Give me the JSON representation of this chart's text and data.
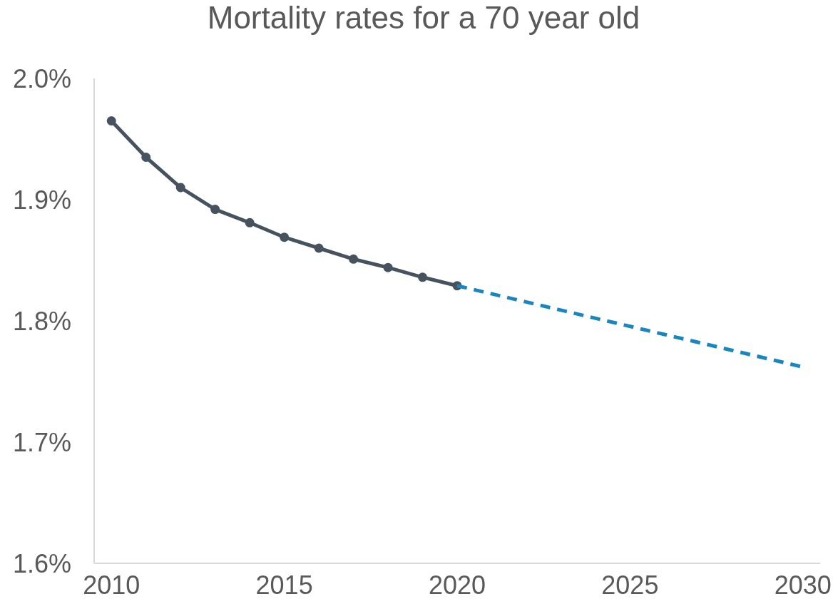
{
  "chart_data": {
    "type": "line",
    "title": "Mortality rates for a 70 year old",
    "xlim": [
      2009.5,
      2030.5
    ],
    "xticks": [
      2010,
      2015,
      2020,
      2025,
      2030
    ],
    "ylim": [
      1.6,
      2.0
    ],
    "yticks": [
      {
        "value": 1.6,
        "label": "1.6%"
      },
      {
        "value": 1.7,
        "label": "1.7%"
      },
      {
        "value": 1.8,
        "label": "1.8%"
      },
      {
        "value": 1.9,
        "label": "1.9%"
      },
      {
        "value": 2.0,
        "label": "2.0%"
      }
    ],
    "series": [
      {
        "color": "#46535e",
        "marker": "circle",
        "line_style": "solid",
        "x": [
          2010,
          2011,
          2012,
          2013,
          2014,
          2015,
          2016,
          2017,
          2018,
          2019,
          2020
        ],
        "values": [
          1.965,
          1.935,
          1.91,
          1.892,
          1.881,
          1.869,
          1.86,
          1.851,
          1.844,
          1.836,
          1.829
        ]
      },
      {
        "color": "#1a86c0",
        "marker": "none",
        "line_style": "dashed",
        "x": [
          2020,
          2030
        ],
        "values": [
          1.829,
          1.762
        ]
      }
    ]
  }
}
